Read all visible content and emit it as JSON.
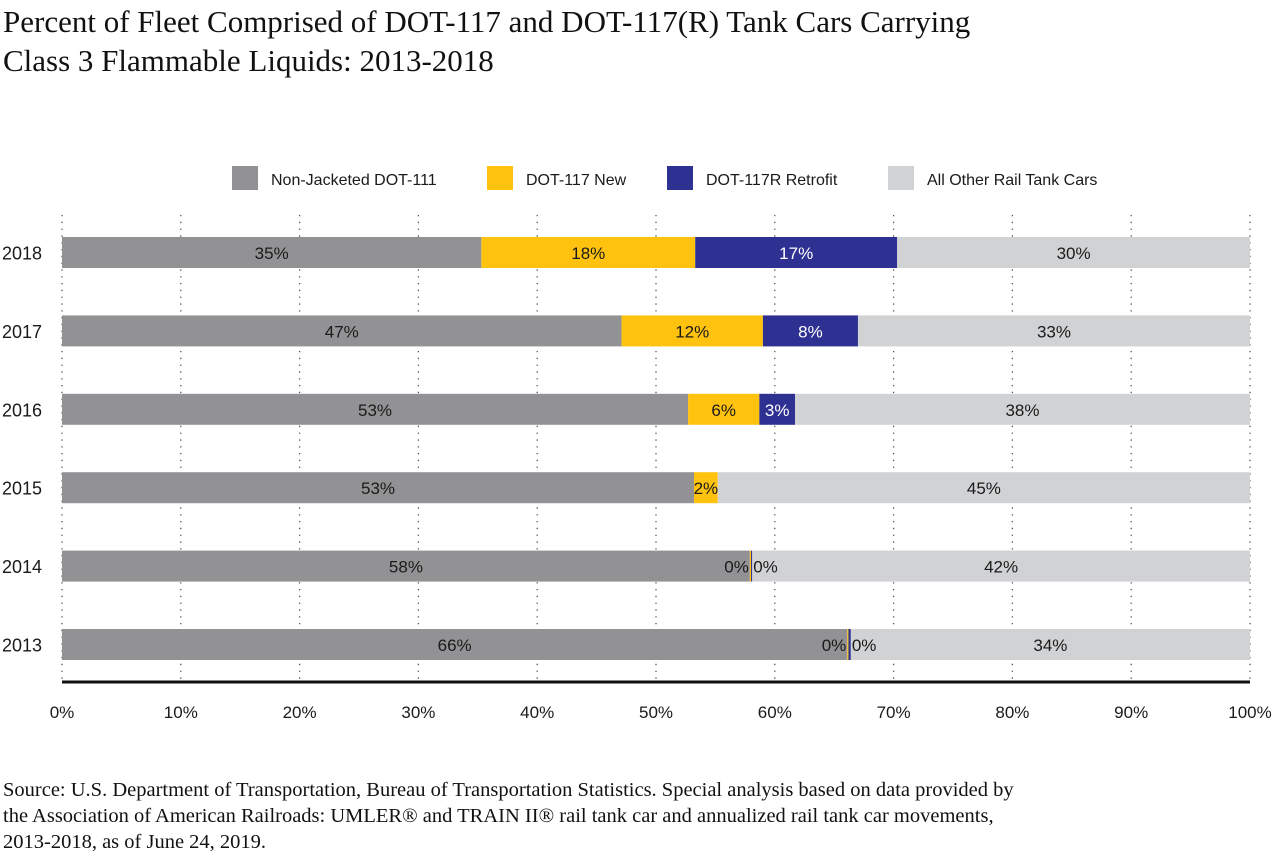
{
  "title": {
    "line1": "Percent of Fleet Comprised of DOT-117 and DOT-117(R) Tank Cars Carrying",
    "line2": "Class 3 Flammable Liquids: 2013-2018"
  },
  "source": {
    "line1": "Source: U.S. Department of Transportation, Bureau of Transportation Statistics. Special analysis based on data provided by",
    "line2": "the Association of American Railroads: UMLER® and TRAIN II® rail tank car and annualized rail tank car movements,",
    "line3": "2013-2018, as of June 24, 2019."
  },
  "chart_data": {
    "type": "bar",
    "orientation": "horizontal",
    "stacked": true,
    "categories": [
      "2018",
      "2017",
      "2016",
      "2015",
      "2014",
      "2013"
    ],
    "series": [
      {
        "name": "Non-Jacketed DOT-111",
        "color": "#929294",
        "label_color": "#1a1a1a",
        "values": [
          35.3,
          47.1,
          52.7,
          53.2,
          57.9,
          66.1
        ],
        "labels": [
          "35%",
          "47%",
          "53%",
          "53%",
          "58%",
          "66%"
        ]
      },
      {
        "name": "DOT-117 New",
        "color": "#fec20f",
        "label_color": "#1a1a1a",
        "values": [
          18.0,
          11.9,
          6.0,
          2.0,
          0.1,
          0.1
        ],
        "labels": [
          "18%",
          "12%",
          "6%",
          "2%",
          "0%",
          "0%"
        ]
      },
      {
        "name": "DOT-117R Retrofit",
        "color": "#2e3192",
        "label_color": "#ffffff",
        "values": [
          17.0,
          8.0,
          3.0,
          0.0,
          0.1,
          0.2
        ],
        "labels": [
          "17%",
          "8%",
          "3%",
          "",
          "0%",
          "0%"
        ]
      },
      {
        "name": "All Other Rail Tank Cars",
        "color": "#d1d2d4",
        "label_color": "#1a1a1a",
        "values": [
          29.7,
          33.0,
          38.3,
          44.8,
          41.9,
          33.6
        ],
        "labels": [
          "30%",
          "33%",
          "38%",
          "45%",
          "42%",
          "34%"
        ]
      }
    ],
    "xticks": [
      "0%",
      "10%",
      "20%",
      "30%",
      "40%",
      "50%",
      "60%",
      "70%",
      "80%",
      "90%",
      "100%"
    ],
    "xlim": [
      0,
      100
    ],
    "xlabel": "",
    "ylabel": "",
    "grid": "vertical dotted",
    "legend": "top-center"
  }
}
